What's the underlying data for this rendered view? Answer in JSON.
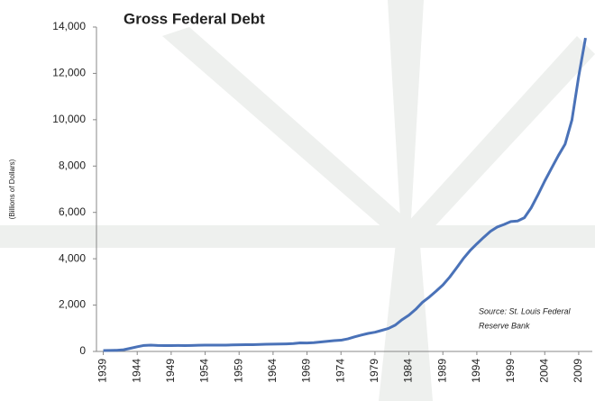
{
  "chart_data": {
    "type": "line",
    "title": "Gross Federal Debt",
    "y_label": "(Billions of Dollars)",
    "source": [
      "Source: St. Louis Federal",
      "Reserve Bank"
    ],
    "x": [
      1939,
      1940,
      1941,
      1942,
      1943,
      1944,
      1945,
      1946,
      1947,
      1948,
      1949,
      1950,
      1951,
      1952,
      1953,
      1954,
      1955,
      1956,
      1957,
      1958,
      1959,
      1960,
      1961,
      1962,
      1963,
      1964,
      1965,
      1966,
      1967,
      1968,
      1969,
      1970,
      1971,
      1972,
      1973,
      1974,
      1975,
      1976,
      1977,
      1978,
      1979,
      1980,
      1981,
      1982,
      1983,
      1984,
      1985,
      1986,
      1987,
      1988,
      1989,
      1990,
      1991,
      1992,
      1993,
      1994,
      1995,
      1996,
      1997,
      1998,
      1999,
      2000,
      2001,
      2002,
      2003,
      2004,
      2005,
      2006,
      2007,
      2008,
      2009,
      2010
    ],
    "series": [
      {
        "color": "#4a72b8",
        "values": [
          40,
          43,
          49,
          72,
          137,
          201,
          259,
          271,
          257,
          252,
          253,
          257,
          255,
          259,
          266,
          271,
          274,
          273,
          272,
          280,
          287,
          291,
          293,
          303,
          310,
          316,
          322,
          328,
          340,
          369,
          366,
          381,
          408,
          436,
          466,
          484,
          542,
          629,
          706,
          777,
          829,
          909,
          995,
          1137,
          1372,
          1565,
          1817,
          2121,
          2346,
          2601,
          2868,
          3206,
          3598,
          4002,
          4351,
          4643,
          4921,
          5182,
          5369,
          5478,
          5606,
          5629,
          5770,
          6198,
          6760,
          7355,
          7905,
          8451,
          8951,
          9986,
          11876,
          13529
        ]
      }
    ],
    "xlim": [
      1938,
      2011
    ],
    "xticks": [
      1939,
      1944,
      1949,
      1954,
      1959,
      1964,
      1969,
      1974,
      1979,
      1984,
      1989,
      1994,
      1999,
      2004,
      2009
    ],
    "ylim": [
      0,
      14000
    ],
    "yticks": [
      0,
      {
        "value": 2000,
        "label": "2,000"
      },
      {
        "value": 4000,
        "label": "4,000"
      },
      {
        "value": 6000,
        "label": "6,000"
      },
      {
        "value": 8000,
        "label": "8,000"
      },
      {
        "value": 10000,
        "label": "10,000"
      },
      {
        "value": 12000,
        "label": "12,000"
      },
      {
        "value": 14000,
        "label": "14,000"
      }
    ],
    "grid": false
  }
}
